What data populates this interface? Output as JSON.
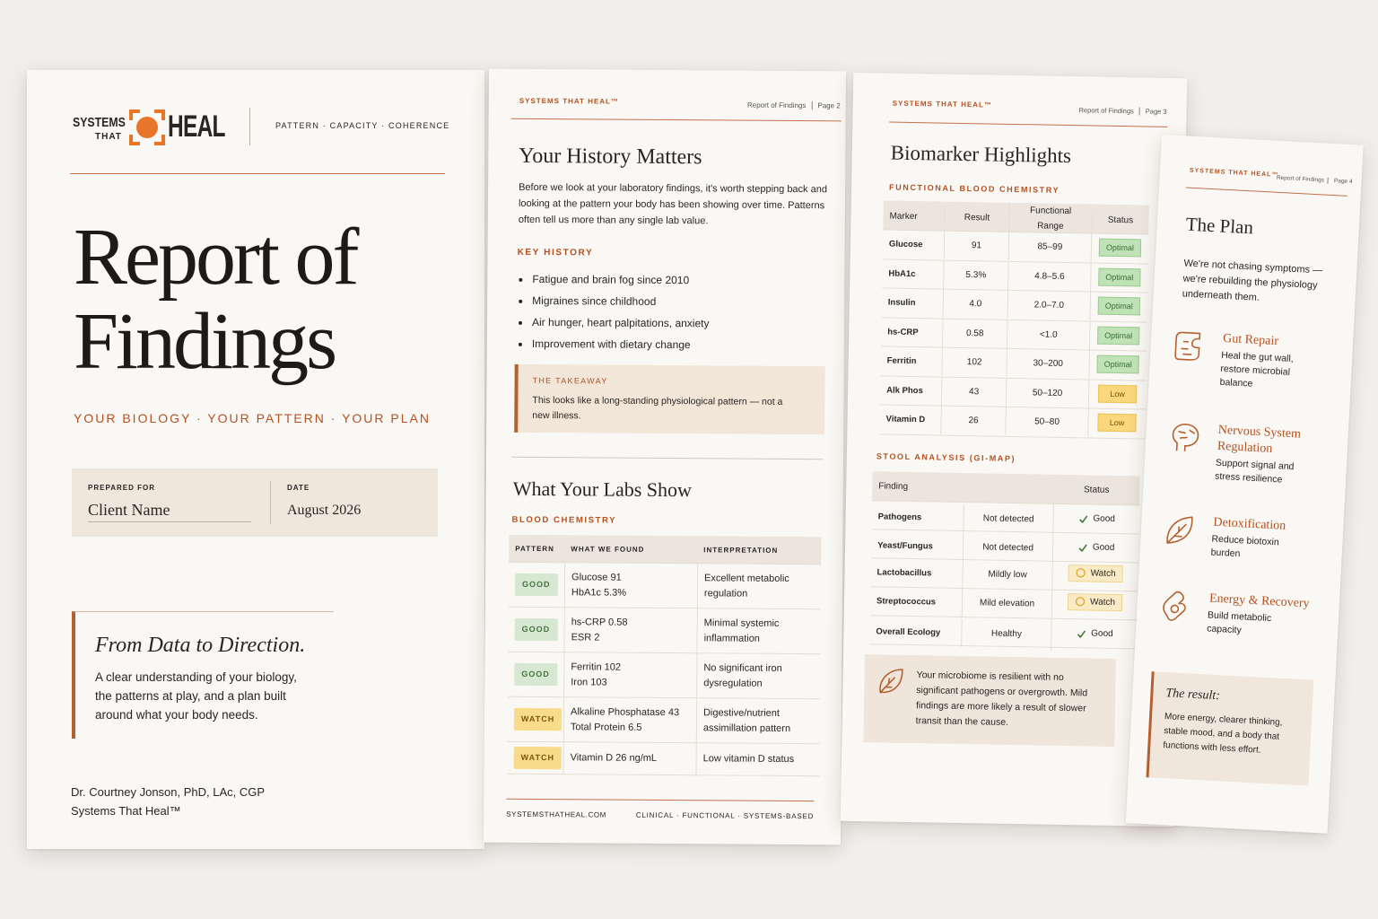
{
  "cover": {
    "logo": {
      "top": "SYSTEMS",
      "sub": "THAT",
      "main": "HEAL"
    },
    "tagline": "PATTERN · CAPACITY · COHERENCE",
    "title": [
      "Report of",
      "Findings"
    ],
    "subtitle": "YOUR BIOLOGY · YOUR PATTERN · YOUR PLAN",
    "prepared_for": {
      "label": "PREPARED FOR",
      "value": "Client Name"
    },
    "date": {
      "label": "DATE",
      "value": "August 2026"
    },
    "quote": {
      "title": "From Data to Direction.",
      "text": "A clear understanding of your biology, the patterns at play, and a plan built around what your body needs."
    },
    "author": "Dr. Courtney Jonson, PhD, LAc, CGP",
    "org": "Systems That Heal™"
  },
  "page2": {
    "header": {
      "brand": "SYSTEMS THAT HEAL™",
      "doc": "Report of Findings",
      "page": "Page 2"
    },
    "title": "Your History Matters",
    "intro": "Before we look at your laboratory findings, it's worth stepping back and looking at the pattern your body has been showing over time. Patterns often tell us more than any single lab value.",
    "history_label": "KEY HISTORY",
    "history": [
      "Fatigue and brain fog since 2010",
      "Migraines since childhood",
      "Air hunger, heart palpitations, anxiety",
      "Improvement with dietary change"
    ],
    "takeaway": {
      "label": "THE TAKEAWAY",
      "text": "This looks like a long-standing physiological pattern — not a new illness."
    },
    "labs_title": "What Your Labs Show",
    "labs_label": "BLOOD CHEMISTRY",
    "table": {
      "headers": [
        "PATTERN",
        "WHAT WE FOUND",
        "INTERPRETATION"
      ],
      "rows": [
        {
          "pattern": "GOOD",
          "found": [
            "Glucose 91",
            "HbA1c 5.3%"
          ],
          "interpretation": "Excellent metabolic regulation"
        },
        {
          "pattern": "GOOD",
          "found": [
            "hs-CRP 0.58",
            "ESR 2"
          ],
          "interpretation": "Minimal systemic inflammation"
        },
        {
          "pattern": "GOOD",
          "found": [
            "Ferritin 102",
            "Iron 103"
          ],
          "interpretation": "No significant iron dysregulation"
        },
        {
          "pattern": "WATCH",
          "found": [
            "Alkaline Phosphatase 43",
            "Total Protein 6.5"
          ],
          "interpretation": "Digestive/nutrient assimillation pattern"
        },
        {
          "pattern": "WATCH",
          "found": [
            "Vitamin D 26 ng/mL"
          ],
          "interpretation": "Low vitamin D status"
        }
      ]
    },
    "footer": {
      "site": "SYSTEMSTHATHEAL.COM",
      "tags": "CLINICAL · FUNCTIONAL · SYSTEMS-BASED"
    }
  },
  "page3": {
    "header": {
      "brand": "SYSTEMS THAT HEAL™",
      "doc": "Report of Findings",
      "page": "Page 3"
    },
    "title": "Biomarker Highlights",
    "blood_label": "FUNCTIONAL BLOOD CHEMISTRY",
    "blood": {
      "headers": [
        "Marker",
        "Result",
        "Functional Range",
        "Status"
      ],
      "rows": [
        [
          "Glucose",
          "91",
          "85–99",
          "Optimal"
        ],
        [
          "HbA1c",
          "5.3%",
          "4.8–5.6",
          "Optimal"
        ],
        [
          "Insulin",
          "4.0",
          "2.0–7.0",
          "Optimal"
        ],
        [
          "hs-CRP",
          "0.58",
          "<1.0",
          "Optimal"
        ],
        [
          "Ferritin",
          "102",
          "30–200",
          "Optimal"
        ],
        [
          "Alk Phos",
          "43",
          "50–120",
          "Low"
        ],
        [
          "Vitamin D",
          "26",
          "50–80",
          "Low"
        ]
      ]
    },
    "stool_label": "STOOL ANALYSIS (GI-MAP)",
    "stool": {
      "headers": [
        "Finding",
        "Status"
      ],
      "rows": [
        [
          "Pathogens",
          "Not detected",
          "Good"
        ],
        [
          "Yeast/Fungus",
          "Not detected",
          "Good"
        ],
        [
          "Lactobacillus",
          "Mildly low",
          "Watch"
        ],
        [
          "Streptococcus",
          "Mild elevation",
          "Watch"
        ],
        [
          "Overall Ecology",
          "Healthy",
          "Good"
        ]
      ]
    },
    "note": "Your microbiome is resilient with no significant pathogens or overgrowth. Mild findings are more likely a result of slower transit than the cause."
  },
  "page4": {
    "header": {
      "brand": "SYSTEMS THAT HEAL™",
      "doc": "Report of Findings",
      "page": "Page 4"
    },
    "title": "The Plan",
    "intro": "We're not chasing symptoms — we're rebuilding the physiology underneath them.",
    "items": [
      {
        "title": "Gut Repair",
        "text": "Heal the gut wall, restore microbial balance"
      },
      {
        "title": "Nervous System Regulation",
        "text": "Support signal and stress resilience"
      },
      {
        "title": "Detoxification",
        "text": "Reduce biotoxin burden"
      },
      {
        "title": "Energy & Recovery",
        "text": "Build metabolic capacity"
      }
    ],
    "result": {
      "title": "The result:",
      "text": "More energy, clearer thinking, stable mood, and a body that functions with less effort."
    }
  }
}
